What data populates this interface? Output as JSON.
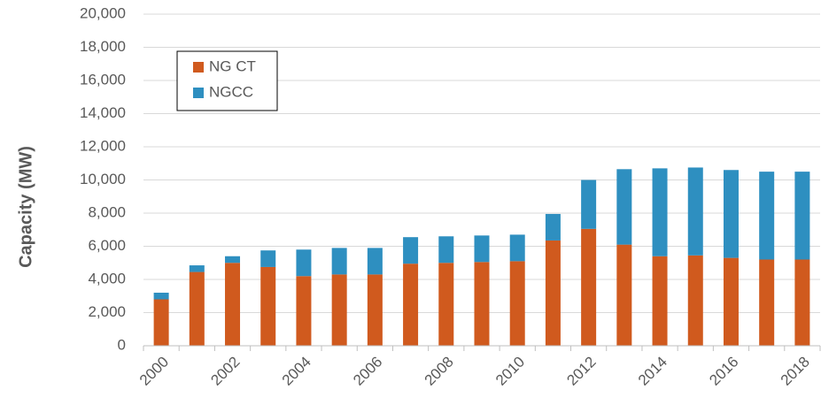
{
  "chart_data": {
    "type": "stacked_bar",
    "y_label": "Capacity (MW)",
    "categories": [
      "2000",
      null,
      "2002",
      null,
      "2004",
      null,
      "2006",
      null,
      "2008",
      null,
      "2010",
      null,
      "2012",
      null,
      "2014",
      null,
      "2016",
      null,
      "2018"
    ],
    "series": [
      {
        "name": "NG CT",
        "color": "#d05a1e",
        "values": [
          2800,
          4450,
          5000,
          4750,
          4200,
          4300,
          4300,
          4950,
          5000,
          5050,
          5100,
          6350,
          7050,
          6100,
          5400,
          5450,
          5300,
          5200,
          5200
        ]
      },
      {
        "name": "NGCC",
        "color": "#2e8fc0",
        "values": [
          400,
          400,
          400,
          1000,
          1600,
          1600,
          1600,
          1600,
          1600,
          1600,
          1600,
          1600,
          2950,
          4550,
          5300,
          5300,
          5300,
          5300,
          5300
        ]
      }
    ],
    "ylim": [
      0,
      20000
    ],
    "yticks": [
      0,
      {
        "value": 2000,
        "label": "2,000"
      },
      {
        "value": 4000,
        "label": "4,000"
      },
      {
        "value": 6000,
        "label": "6,000"
      },
      {
        "value": 8000,
        "label": "8,000"
      },
      {
        "value": 10000,
        "label": "10,000"
      },
      {
        "value": 12000,
        "label": "12,000"
      },
      {
        "value": 14000,
        "label": "14,000"
      },
      {
        "value": 16000,
        "label": "16,000"
      },
      {
        "value": 18000,
        "label": "18,000"
      },
      {
        "value": 20000,
        "label": "20,000"
      }
    ],
    "grid": true,
    "legend": "upper left"
  }
}
